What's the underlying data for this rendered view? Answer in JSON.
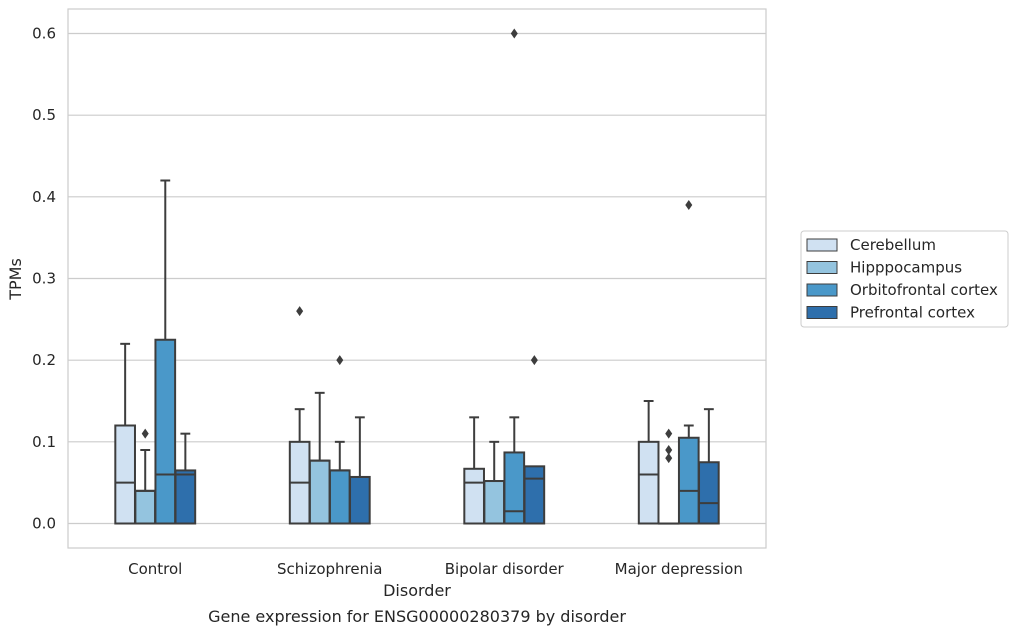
{
  "caption": "Gene expression for ENSG00000280379 by disorder",
  "chart_data": {
    "type": "box",
    "xlabel": "Disorder",
    "ylabel": "TPMs",
    "ylim": [
      -0.03,
      0.63
    ],
    "yticks": [
      "0.0",
      "0.1",
      "0.2",
      "0.3",
      "0.4",
      "0.5",
      "0.6"
    ],
    "grid": true,
    "legend_position": "right",
    "categories": [
      "Control",
      "Schizophrenia",
      "Bipolar disorder",
      "Major depression"
    ],
    "series": [
      {
        "name": "Cerebellum",
        "color": "#d0e1f2",
        "boxes": [
          {
            "min": 0.0,
            "q1": 0.0,
            "median": 0.05,
            "q3": 0.12,
            "max": 0.22,
            "outliers": []
          },
          {
            "min": 0.0,
            "q1": 0.0,
            "median": 0.05,
            "q3": 0.1,
            "max": 0.14,
            "outliers": [
              0.26
            ]
          },
          {
            "min": 0.0,
            "q1": 0.0,
            "median": 0.05,
            "q3": 0.067,
            "max": 0.13,
            "outliers": []
          },
          {
            "min": 0.0,
            "q1": 0.0,
            "median": 0.06,
            "q3": 0.1,
            "max": 0.15,
            "outliers": []
          }
        ]
      },
      {
        "name": "Hipppocampus",
        "color": "#94c4df",
        "boxes": [
          {
            "min": 0.0,
            "q1": 0.0,
            "median": 0.04,
            "q3": 0.04,
            "max": 0.09,
            "outliers": [
              0.11
            ]
          },
          {
            "min": 0.0,
            "q1": 0.0,
            "median": 0.077,
            "q3": 0.077,
            "max": 0.16,
            "outliers": []
          },
          {
            "min": 0.0,
            "q1": 0.0,
            "median": 0.052,
            "q3": 0.052,
            "max": 0.1,
            "outliers": []
          },
          {
            "min": 0.0,
            "q1": 0.0,
            "median": 0.0,
            "q3": 0.0,
            "max": 0.0,
            "outliers": [
              0.08,
              0.09,
              0.11
            ]
          }
        ]
      },
      {
        "name": "Orbitofrontal cortex",
        "color": "#4a98c9",
        "boxes": [
          {
            "min": 0.0,
            "q1": 0.0,
            "median": 0.06,
            "q3": 0.225,
            "max": 0.42,
            "outliers": []
          },
          {
            "min": 0.0,
            "q1": 0.0,
            "median": 0.065,
            "q3": 0.065,
            "max": 0.1,
            "outliers": [
              0.2
            ]
          },
          {
            "min": 0.0,
            "q1": 0.0,
            "median": 0.015,
            "q3": 0.087,
            "max": 0.13,
            "outliers": [
              0.6
            ]
          },
          {
            "min": 0.0,
            "q1": 0.0,
            "median": 0.04,
            "q3": 0.105,
            "max": 0.12,
            "outliers": [
              0.39
            ]
          }
        ]
      },
      {
        "name": "Prefrontal cortex",
        "color": "#2e6fac",
        "boxes": [
          {
            "min": 0.0,
            "q1": 0.0,
            "median": 0.06,
            "q3": 0.065,
            "max": 0.11,
            "outliers": []
          },
          {
            "min": 0.0,
            "q1": 0.0,
            "median": 0.057,
            "q3": 0.057,
            "max": 0.13,
            "outliers": []
          },
          {
            "min": 0.0,
            "q1": 0.0,
            "median": 0.055,
            "q3": 0.07,
            "max": 0.07,
            "outliers": [
              0.2
            ]
          },
          {
            "min": 0.0,
            "q1": 0.0,
            "median": 0.025,
            "q3": 0.075,
            "max": 0.14,
            "outliers": []
          }
        ]
      }
    ]
  }
}
